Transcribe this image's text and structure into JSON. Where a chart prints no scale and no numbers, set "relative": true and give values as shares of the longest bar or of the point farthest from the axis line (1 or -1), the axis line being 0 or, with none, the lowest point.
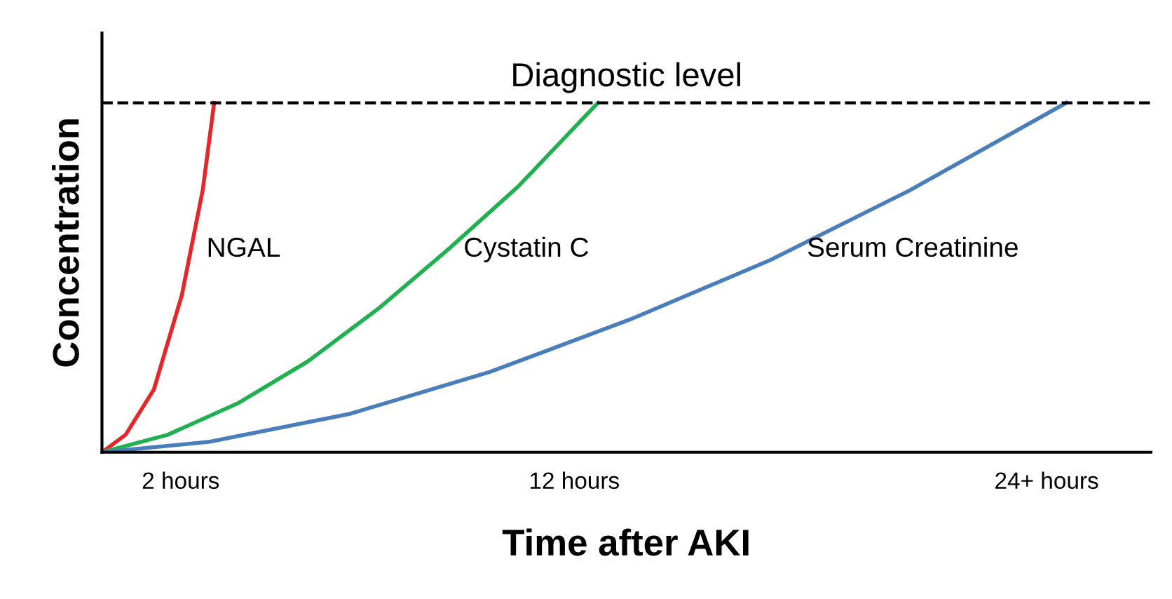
{
  "chart_data": {
    "type": "line",
    "relative": true,
    "xlabel": "Time after AKI",
    "ylabel": "Concentration",
    "xlim": [
      0,
      26.65
    ],
    "xticks": [
      {
        "value": 2,
        "label": "2 hours"
      },
      {
        "value": 12,
        "label": "12 hours"
      },
      {
        "value": 24,
        "label": "24+ hours"
      }
    ],
    "series": [
      {
        "name": "NGAL",
        "color": "#e8262a",
        "x": [
          0,
          0.6,
          1.32,
          2.03,
          2.56,
          2.85
        ],
        "values": [
          0,
          0.05,
          0.18,
          0.45,
          0.75,
          1
        ]
      },
      {
        "name": "Cystatin C",
        "color": "#1fb050",
        "x": [
          0,
          1.67,
          3.45,
          5.23,
          7.01,
          8.79,
          10.57,
          12.6
        ],
        "values": [
          0,
          0.05,
          0.14,
          0.26,
          0.41,
          0.58,
          0.76,
          1
        ]
      },
      {
        "name": "Serum Creatinine",
        "color": "#4a7ebb",
        "x": [
          0,
          2.74,
          6.3,
          9.86,
          13.42,
          16.98,
          20.53,
          24.5
        ],
        "values": [
          0,
          0.03,
          0.11,
          0.23,
          0.38,
          0.55,
          0.75,
          1
        ]
      }
    ],
    "ref_lines": [
      {
        "axis": "y",
        "value": 1,
        "label": "Diagnostic level",
        "color": "#000000",
        "line_style": "dashed"
      }
    ],
    "grid": false,
    "legend": false,
    "marker": "none",
    "line_style": "solid"
  }
}
